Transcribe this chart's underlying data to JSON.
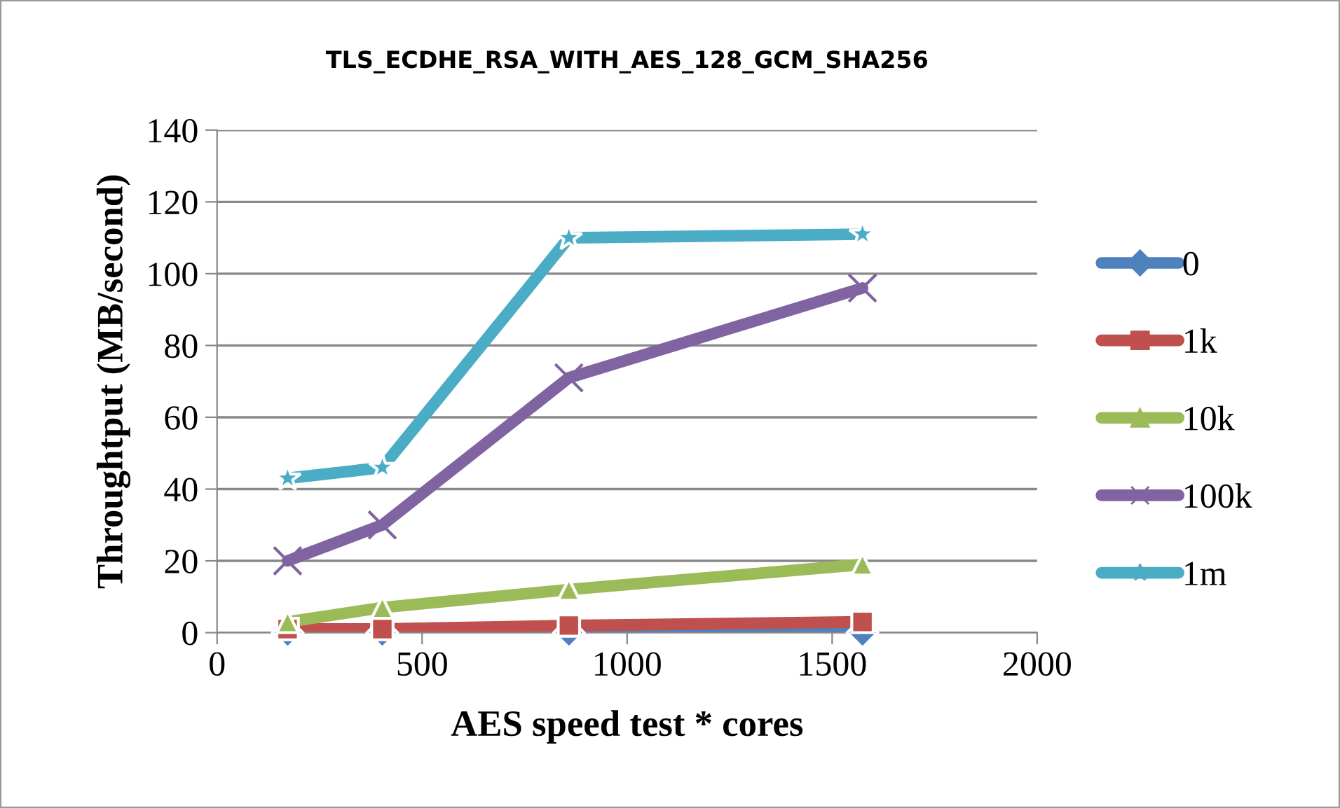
{
  "chart_data": {
    "type": "line",
    "title": "TLS_ECDHE_RSA_WITH_AES_128_GCM_SHA256",
    "xlabel": "AES speed test * cores",
    "ylabel": "Throughtput (MB/second)",
    "x": [
      172,
      403,
      858,
      1574
    ],
    "series": [
      {
        "name": "0",
        "color": "#4f81bd",
        "marker": "diamond",
        "values": [
          0,
          0,
          0,
          0
        ]
      },
      {
        "name": "1k",
        "color": "#c0504d",
        "marker": "square",
        "values": [
          1,
          1,
          2,
          3
        ]
      },
      {
        "name": "10k",
        "color": "#9bbb59",
        "marker": "triangle",
        "values": [
          3,
          7,
          12,
          19
        ]
      },
      {
        "name": "100k",
        "color": "#8064a2",
        "marker": "cross",
        "values": [
          20,
          30,
          71,
          96
        ]
      },
      {
        "name": "1m",
        "color": "#4bacc6",
        "marker": "star",
        "values": [
          43,
          46,
          110,
          111
        ]
      }
    ],
    "xlim": [
      0,
      2000
    ],
    "xticks": [
      0,
      500,
      1000,
      1500,
      2000
    ],
    "ylim": [
      0,
      140
    ],
    "yticks": [
      0,
      20,
      40,
      60,
      80,
      100,
      120,
      140
    ],
    "grid": "y",
    "legend": "right",
    "line_style": "solid"
  }
}
